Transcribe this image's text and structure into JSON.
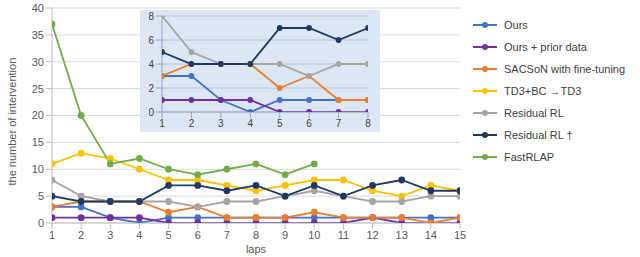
{
  "chart_data": [
    {
      "type": "line",
      "x_label": "laps",
      "y_label": "the number of intervention",
      "x": [
        1,
        2,
        3,
        4,
        5,
        6,
        7,
        8,
        9,
        10,
        11,
        12,
        13,
        14,
        15
      ],
      "xlim": [
        1,
        15
      ],
      "xticks": [
        1,
        2,
        3,
        4,
        5,
        6,
        7,
        8,
        9,
        10,
        11,
        12,
        13,
        14,
        15
      ],
      "ylim": [
        0,
        40
      ],
      "yticks": [
        0,
        5,
        10,
        15,
        20,
        25,
        30,
        35,
        40
      ],
      "grid": true,
      "legend": "right",
      "marker": "circle",
      "series": [
        {
          "name": "Ours",
          "color": "#4472c4",
          "values": [
            3,
            3,
            1,
            0,
            1,
            1,
            1,
            1,
            1,
            1,
            1,
            1,
            1,
            1,
            1
          ]
        },
        {
          "name": "Ours + prior data",
          "color": "#7030a0",
          "values": [
            1,
            1,
            1,
            1,
            0,
            0,
            0,
            0,
            0,
            0,
            0,
            1,
            0,
            0,
            0
          ]
        },
        {
          "name": "SACSoN with fine-tuning",
          "color": "#ed7d31",
          "values": [
            3,
            4,
            4,
            4,
            2,
            3,
            1,
            1,
            1,
            2,
            1,
            1,
            1,
            0,
            1
          ]
        },
        {
          "name": "TD3+BC →TD3",
          "color": "#ffc000",
          "values": [
            11,
            13,
            12,
            10,
            8,
            8,
            7,
            6,
            7,
            8,
            8,
            6,
            5,
            7,
            6
          ]
        },
        {
          "name": "Residual RL",
          "color": "#a5a5a5",
          "values": [
            8,
            5,
            4,
            4,
            4,
            3,
            4,
            4,
            5,
            6,
            5,
            4,
            4,
            5,
            5
          ]
        },
        {
          "name": "Residual RL †",
          "color": "#203864",
          "values": [
            5,
            4,
            4,
            4,
            7,
            7,
            6,
            7,
            5,
            7,
            5,
            7,
            8,
            6,
            6
          ]
        },
        {
          "name": "FastRLAP",
          "color": "#70ad47",
          "values": [
            37,
            20,
            11,
            12,
            10,
            9,
            10,
            11,
            9,
            11,
            null,
            null,
            null,
            null,
            null
          ]
        }
      ]
    },
    {
      "type": "line",
      "x": [
        1,
        2,
        3,
        4,
        5,
        6,
        7,
        8
      ],
      "xlim": [
        1,
        8
      ],
      "xticks": [
        1,
        2,
        3,
        4,
        5,
        6,
        7,
        8
      ],
      "ylim": [
        0,
        8
      ],
      "yticks": [
        0,
        2,
        4,
        6,
        8
      ],
      "grid": true,
      "marker": "circle",
      "series": [
        {
          "color": "#4472c4",
          "values": [
            3,
            3,
            1,
            0,
            1,
            1,
            1,
            1
          ]
        },
        {
          "color": "#7030a0",
          "values": [
            1,
            1,
            1,
            1,
            0,
            0,
            0,
            0
          ]
        },
        {
          "color": "#ed7d31",
          "values": [
            3,
            4,
            4,
            4,
            2,
            3,
            1,
            1
          ]
        },
        {
          "color": "#a5a5a5",
          "values": [
            8,
            5,
            4,
            4,
            4,
            3,
            4,
            4
          ]
        },
        {
          "color": "#203864",
          "values": [
            5,
            4,
            4,
            4,
            7,
            7,
            6,
            7
          ]
        }
      ]
    }
  ]
}
